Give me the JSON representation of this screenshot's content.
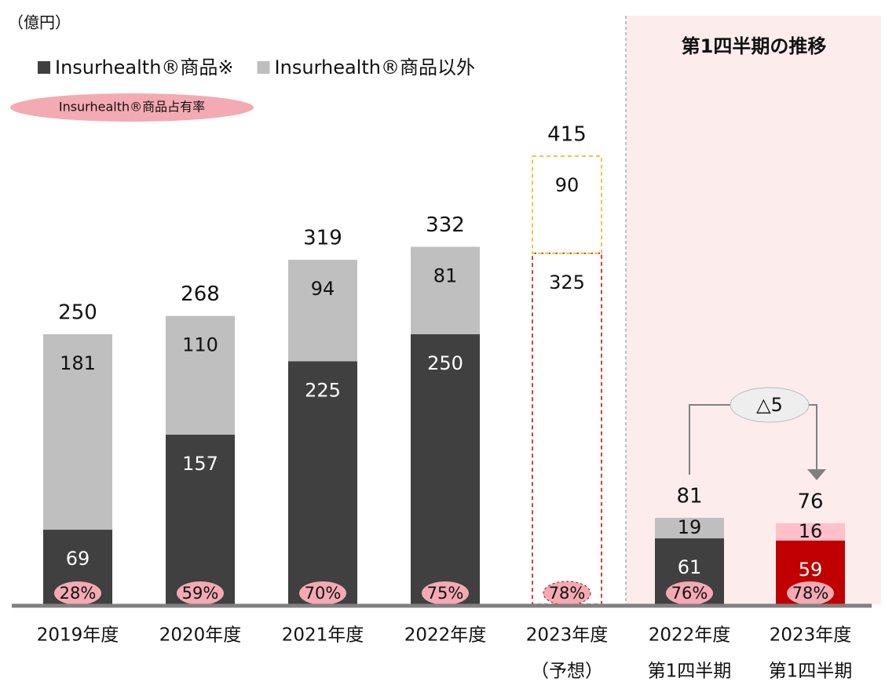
{
  "chart_data": {
    "type": "stacked_bar",
    "unit_label": "（億円）",
    "panel_title": "第1四半期の推移",
    "share_legend": "Insurhealth®商品占有率",
    "annotation": "△5",
    "categories": [
      "2019年度",
      "2020年度",
      "2021年度",
      "2022年度",
      "2023年度",
      "2022年度",
      "2023年度"
    ],
    "category_sublabels": [
      null,
      null,
      null,
      null,
      "（予想）",
      "第1四半期",
      "第1四半期"
    ],
    "category_styles": [
      "solid",
      "solid",
      "solid",
      "solid",
      "dashed",
      "solid",
      "solid"
    ],
    "series": [
      {
        "name": "Insurhealth®商品※",
        "color": "#404040",
        "colors": [
          "#404040",
          "#404040",
          "#404040",
          "#404040",
          "#c00000",
          "#404040",
          "#c00000"
        ],
        "values": [
          69,
          157,
          225,
          250,
          325,
          61,
          59
        ]
      },
      {
        "name": "Insurhealth®商品以外",
        "color": "#bfbfbf",
        "colors": [
          "#bfbfbf",
          "#bfbfbf",
          "#bfbfbf",
          "#bfbfbf",
          "#f0b000",
          "#bfbfbf",
          "#ffc0cb"
        ],
        "values": [
          181,
          110,
          94,
          81,
          90,
          19,
          16
        ]
      }
    ],
    "totals": [
      250,
      268,
      319,
      332,
      415,
      81,
      76
    ],
    "shares": [
      28,
      59,
      70,
      75,
      78,
      76,
      78
    ],
    "share_labels": [
      "28%",
      "59%",
      "70%",
      "75%",
      "78%",
      "76%",
      "78%"
    ],
    "ylim": [
      0,
      500
    ]
  }
}
